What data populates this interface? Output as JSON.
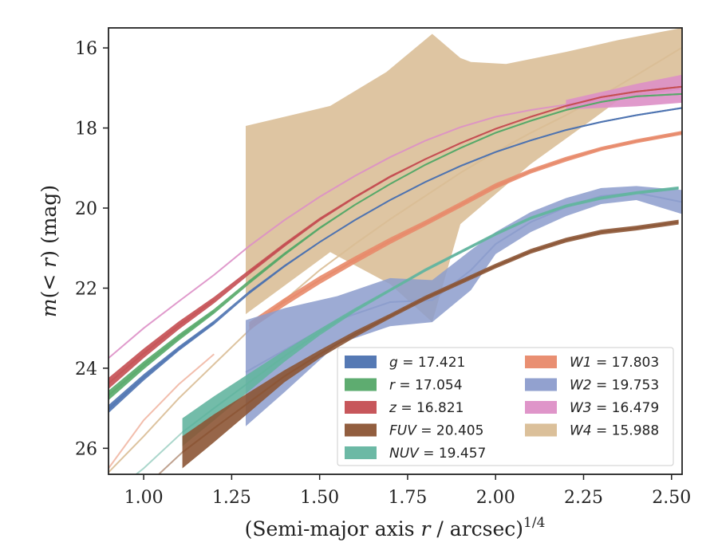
{
  "chart_data": {
    "type": "area",
    "xlabel": "(Semi-major axis r / arcsec)",
    "xlabel_base": "(Semi-major axis ",
    "xlabel_var": "r",
    "xlabel_rest": " / arcsec)",
    "xlabel_sup": "1/4",
    "ylabel": "m(< r) (mag)",
    "ylabel_m": "m",
    "ylabel_paren": "(< ",
    "ylabel_r": "r",
    "ylabel_close": ")",
    "ylabel_unit": " (mag)",
    "xlim": [
      0.9,
      2.53
    ],
    "ylim": [
      26.65,
      15.5
    ],
    "y_inverted": true,
    "xticks": [
      1.0,
      1.25,
      1.5,
      1.75,
      2.0,
      2.25,
      2.5
    ],
    "xtick_labels": [
      "1.00",
      "1.25",
      "1.50",
      "1.75",
      "2.00",
      "2.25",
      "2.50"
    ],
    "yticks": [
      16,
      18,
      20,
      22,
      24,
      26
    ],
    "ytick_labels": [
      "16",
      "18",
      "20",
      "22",
      "24",
      "26"
    ],
    "grid": false,
    "legend_position": "lower-right",
    "legend_columns": 2,
    "series": [
      {
        "name": "g = 17.421",
        "band": "g",
        "total_mag": "17.421",
        "color": "#4c72b0",
        "x": [
          0.9,
          1.0,
          1.1,
          1.2,
          1.3,
          1.4,
          1.5,
          1.6,
          1.7,
          1.8,
          1.9,
          2.0,
          2.1,
          2.2,
          2.3,
          2.4,
          2.53
        ],
        "y": [
          25.02,
          24.23,
          23.51,
          22.86,
          22.11,
          21.45,
          20.85,
          20.3,
          19.8,
          19.35,
          18.95,
          18.6,
          18.31,
          18.05,
          17.85,
          17.68,
          17.5
        ],
        "err": [
          0.1,
          0.08,
          0.06,
          0.05,
          0.04,
          0.03,
          0.02,
          0.02,
          0.02,
          0.02,
          0.02,
          0.02,
          0.02,
          0.02,
          0.02,
          0.02,
          0.02
        ],
        "x_band_start": 0.9,
        "x_line_start": 1.29
      },
      {
        "name": "r = 17.054",
        "band": "r",
        "total_mag": "17.054",
        "color": "#55a868",
        "x": [
          0.9,
          1.0,
          1.1,
          1.2,
          1.3,
          1.4,
          1.5,
          1.6,
          1.7,
          1.8,
          1.9,
          2.0,
          2.1,
          2.2,
          2.3,
          2.4,
          2.53
        ],
        "y": [
          24.68,
          23.93,
          23.23,
          22.58,
          21.85,
          21.15,
          20.5,
          19.92,
          19.4,
          18.92,
          18.5,
          18.12,
          17.82,
          17.55,
          17.35,
          17.21,
          17.15
        ],
        "err": [
          0.12,
          0.1,
          0.08,
          0.06,
          0.05,
          0.04,
          0.03,
          0.02,
          0.02,
          0.02,
          0.02,
          0.02,
          0.02,
          0.02,
          0.02,
          0.02,
          0.02
        ],
        "x_band_start": 0.9,
        "x_line_start": 1.29
      },
      {
        "name": "z = 16.821",
        "band": "z",
        "total_mag": "16.821",
        "color": "#c44e52",
        "x": [
          0.9,
          1.0,
          1.1,
          1.2,
          1.3,
          1.4,
          1.5,
          1.6,
          1.7,
          1.8,
          1.9,
          2.0,
          2.1,
          2.2,
          2.3,
          2.4,
          2.53
        ],
        "y": [
          24.38,
          23.63,
          22.93,
          22.3,
          21.6,
          20.92,
          20.28,
          19.73,
          19.22,
          18.78,
          18.38,
          18.02,
          17.72,
          17.45,
          17.23,
          17.09,
          16.97
        ],
        "err": [
          0.14,
          0.12,
          0.1,
          0.08,
          0.06,
          0.05,
          0.04,
          0.03,
          0.03,
          0.02,
          0.02,
          0.02,
          0.02,
          0.02,
          0.02,
          0.02,
          0.02
        ],
        "x_band_start": 0.9,
        "x_line_start": 1.29
      },
      {
        "name": "FUV = 20.405",
        "band": "FUV",
        "total_mag": "20.405",
        "color": "#8c5535",
        "x": [
          0.9,
          1.0,
          1.11,
          1.2,
          1.3,
          1.4,
          1.5,
          1.6,
          1.7,
          1.8,
          1.9,
          2.0,
          2.1,
          2.2,
          2.3,
          2.4,
          2.52
        ],
        "y": [
          27.7,
          27.0,
          26.1,
          25.5,
          24.85,
          24.2,
          23.65,
          23.15,
          22.7,
          22.25,
          21.85,
          21.45,
          21.08,
          20.8,
          20.6,
          20.5,
          20.35
        ],
        "err": [
          0.4,
          0.35,
          0.4,
          0.35,
          0.25,
          0.15,
          0.1,
          0.08,
          0.06,
          0.06,
          0.06,
          0.06,
          0.06,
          0.06,
          0.06,
          0.06,
          0.06
        ],
        "x_band_start": 1.11,
        "x_line_start": 1.11
      },
      {
        "name": "NUV = 19.457",
        "band": "NUV",
        "total_mag": "19.457",
        "color": "#64b5a0",
        "x": [
          0.9,
          1.0,
          1.11,
          1.2,
          1.3,
          1.4,
          1.5,
          1.6,
          1.7,
          1.8,
          1.9,
          2.0,
          2.1,
          2.2,
          2.3,
          2.4,
          2.52
        ],
        "y": [
          27.2,
          26.5,
          25.6,
          25.0,
          24.35,
          23.7,
          23.1,
          22.55,
          22.05,
          21.55,
          21.1,
          20.65,
          20.25,
          19.95,
          19.75,
          19.62,
          19.5
        ],
        "err": [
          0.35,
          0.3,
          0.35,
          0.3,
          0.22,
          0.14,
          0.08,
          0.05,
          0.04,
          0.04,
          0.04,
          0.04,
          0.04,
          0.04,
          0.04,
          0.04,
          0.04
        ],
        "x_band_start": 1.11,
        "x_line_start": 1.11
      },
      {
        "name": "W1 = 17.803",
        "band": "W1",
        "total_mag": "17.803",
        "color": "#e8896a",
        "x": [
          0.9,
          1.0,
          1.1,
          1.2,
          1.3,
          1.4,
          1.5,
          1.6,
          1.7,
          1.8,
          1.9,
          2.0,
          2.1,
          2.2,
          2.3,
          2.4,
          2.53
        ],
        "y": [
          26.5,
          25.3,
          24.4,
          23.65,
          22.95,
          22.35,
          21.8,
          21.3,
          20.82,
          20.38,
          19.92,
          19.45,
          19.08,
          18.78,
          18.52,
          18.33,
          18.12
        ],
        "err": [
          0.25,
          0.2,
          0.15,
          0.12,
          0.1,
          0.1,
          0.1,
          0.09,
          0.08,
          0.07,
          0.07,
          0.07,
          0.06,
          0.06,
          0.05,
          0.05,
          0.05
        ],
        "x_band_start": 1.29,
        "x_line_start": 1.29
      },
      {
        "name": "W2 = 19.753",
        "band": "W2",
        "total_mag": "19.753",
        "color": "#8c9ccc",
        "x": [
          1.29,
          1.4,
          1.55,
          1.7,
          1.82,
          1.93,
          2.0,
          2.1,
          2.2,
          2.3,
          2.4,
          2.53
        ],
        "y_upper": [
          22.8,
          22.5,
          22.2,
          21.75,
          21.8,
          21.05,
          20.6,
          20.1,
          19.75,
          19.5,
          19.45,
          19.55
        ],
        "y_lower": [
          25.45,
          24.6,
          23.4,
          22.95,
          22.85,
          22.05,
          21.15,
          20.6,
          20.2,
          19.9,
          19.8,
          20.15
        ],
        "y": [
          24.1,
          23.55,
          22.8,
          22.35,
          22.3,
          21.55,
          20.9,
          20.35,
          19.98,
          19.7,
          19.62,
          19.85
        ],
        "x_band_start": 1.29,
        "x_line_start": 1.29
      },
      {
        "name": "W3 = 16.479",
        "band": "W3",
        "total_mag": "16.479",
        "color": "#dd8fc6",
        "x": [
          0.9,
          1.0,
          1.1,
          1.2,
          1.3,
          1.4,
          1.5,
          1.6,
          1.7,
          1.8,
          1.9,
          2.0,
          2.1,
          2.2,
          2.3,
          2.4,
          2.53
        ],
        "y": [
          23.75,
          23.0,
          22.33,
          21.67,
          20.95,
          20.3,
          19.72,
          19.2,
          18.73,
          18.32,
          17.98,
          17.72,
          17.55,
          17.42,
          17.3,
          17.18,
          17.02
        ],
        "err": [
          0.05,
          0.05,
          0.05,
          0.05,
          0.05,
          0.05,
          0.05,
          0.05,
          0.05,
          0.05,
          0.05,
          0.05,
          0.08,
          0.12,
          0.2,
          0.28,
          0.35
        ],
        "x_band_start": 2.2,
        "x_line_start": 0.9
      },
      {
        "name": "W4 = 15.988",
        "band": "W4",
        "total_mag": "15.988",
        "color": "#d9bd95",
        "x": [
          0.9,
          1.0,
          1.1,
          1.2,
          1.3,
          1.4,
          1.5,
          1.6,
          1.7,
          1.8,
          1.9,
          2.0,
          2.1,
          2.2,
          2.3,
          2.4,
          2.53
        ],
        "y": [
          26.6,
          25.7,
          24.75,
          23.9,
          23.05,
          22.3,
          21.55,
          20.9,
          20.28,
          19.7,
          19.12,
          18.6,
          18.12,
          17.68,
          17.2,
          16.68,
          15.99
        ],
        "band_x": [
          1.29,
          1.53,
          1.69,
          1.82,
          1.9,
          1.93,
          2.03,
          2.2,
          2.35,
          2.53,
          2.53,
          2.35,
          2.25,
          2.1,
          1.9,
          1.82,
          1.7,
          1.53,
          1.29
        ],
        "band_y": [
          17.95,
          17.45,
          16.6,
          15.65,
          16.25,
          16.35,
          16.4,
          16.1,
          15.8,
          15.5,
          16.95,
          17.3,
          17.95,
          18.9,
          20.4,
          22.85,
          21.9,
          21.1,
          22.65
        ],
        "x_band_start": 1.29,
        "x_line_start": 0.9
      }
    ]
  }
}
